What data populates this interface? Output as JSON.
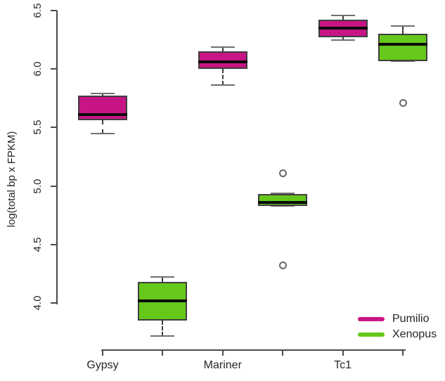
{
  "chart_data": {
    "type": "boxplot",
    "title": "",
    "xlabel": "",
    "ylabel": "log(total bp x FPKM)",
    "ylim": [
      4.0,
      6.5
    ],
    "yticks": [
      4.0,
      4.5,
      5.0,
      5.5,
      6.0,
      6.5
    ],
    "ytick_labels": [
      "4.0",
      "4.5",
      "5.0",
      "5.5",
      "6.0",
      "6.5"
    ],
    "grid": false,
    "categories": [
      "Gypsy",
      "Mariner",
      "Tc1"
    ],
    "series": [
      {
        "name": "Pumilio",
        "color": "#C71585"
      },
      {
        "name": "Xenopus",
        "color": "#66C81A"
      }
    ],
    "boxes": [
      {
        "category": "Gypsy",
        "series": "Pumilio",
        "position": 1,
        "whisker_low": 5.45,
        "q1": 5.56,
        "median": 5.61,
        "q3": 5.77,
        "whisker_high": 5.79,
        "outliers": []
      },
      {
        "category": "Gypsy",
        "series": "Xenopus",
        "position": 2,
        "whisker_low": 3.72,
        "q1": 3.85,
        "median": 4.02,
        "q3": 4.18,
        "whisker_high": 4.22,
        "outliers": []
      },
      {
        "category": "Mariner",
        "series": "Pumilio",
        "position": 3,
        "whisker_low": 5.86,
        "q1": 6.0,
        "median": 6.06,
        "q3": 6.15,
        "whisker_high": 6.19,
        "outliers": []
      },
      {
        "category": "Mariner",
        "series": "Xenopus",
        "position": 4,
        "whisker_low": 4.83,
        "q1": 4.83,
        "median": 4.86,
        "q3": 4.93,
        "whisker_high": 4.94,
        "outliers": [
          5.11,
          4.32
        ]
      },
      {
        "category": "Tc1",
        "series": "Pumilio",
        "position": 5,
        "whisker_low": 6.25,
        "q1": 6.27,
        "median": 6.35,
        "q3": 6.42,
        "whisker_high": 6.46,
        "outliers": []
      },
      {
        "category": "Tc1",
        "series": "Xenopus",
        "position": 6,
        "whisker_low": 6.07,
        "q1": 6.07,
        "median": 6.21,
        "q3": 6.3,
        "whisker_high": 6.37,
        "outliers": [
          5.71
        ]
      }
    ],
    "legend": {
      "position": "bottom-right",
      "entries": [
        {
          "label": "Pumilio",
          "color": "#C71585"
        },
        {
          "label": "Xenopus",
          "color": "#66C81A"
        }
      ]
    },
    "colors": {
      "background": "#ffffff",
      "axis": "#4b4b4b",
      "box_border": "#3f3f3f",
      "median": "#0a0a0a",
      "whisker": "#6f6f6f",
      "text": "#262626"
    }
  }
}
